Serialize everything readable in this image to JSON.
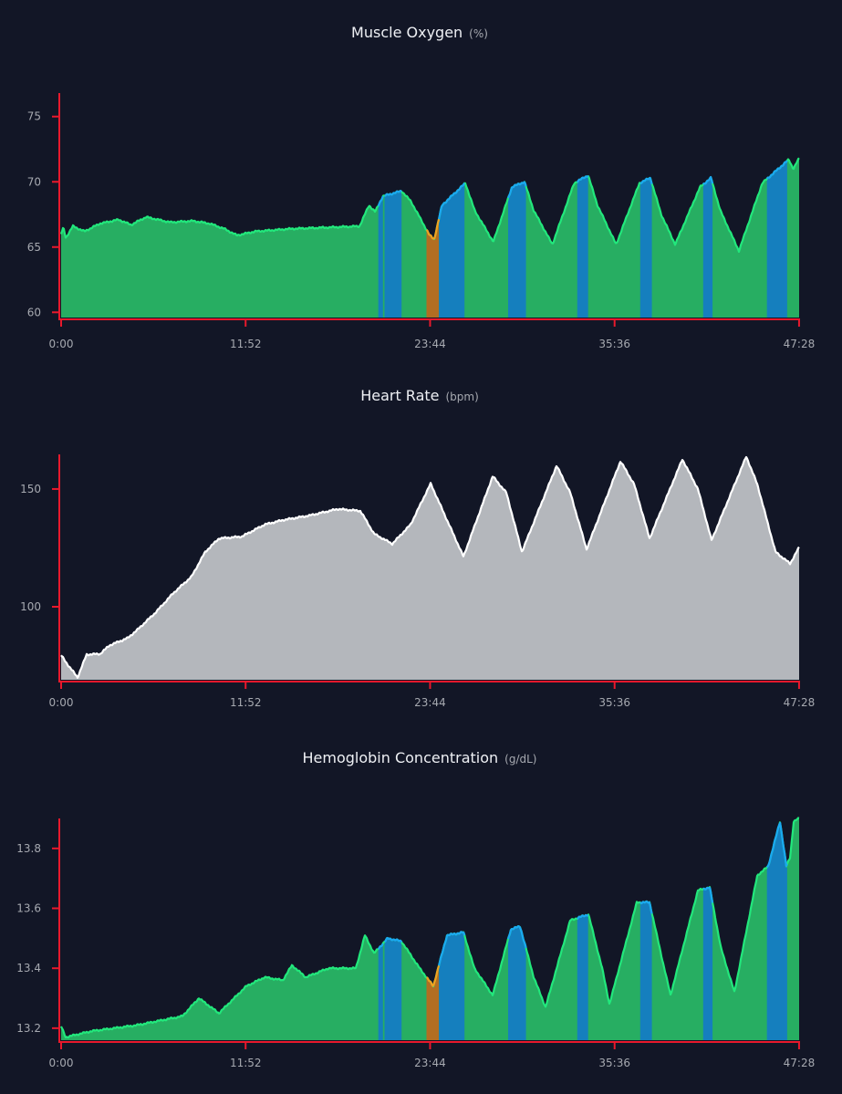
{
  "colors": {
    "background": "#121626",
    "axis": "#e8192c",
    "green_fill": "#27ae62",
    "green_line": "#22e87c",
    "blue_fill": "#157fbe",
    "blue_line": "#1aa8f2",
    "orange_fill": "#b26e22",
    "orange_line": "#f2a01e",
    "gray_fill": "#b4b7bc",
    "gray_line": "#ffffff"
  },
  "chart_data": [
    {
      "type": "area",
      "title": "Muscle Oxygen",
      "unit": "(%)",
      "xlabel": "",
      "ylabel": "",
      "x_unit": "minutes",
      "xlim": [
        0,
        47.47
      ],
      "ylim": [
        59.6,
        76.8
      ],
      "x_ticks": [
        {
          "value": 0,
          "label": "0:00"
        },
        {
          "value": 11.867,
          "label": "11:52"
        },
        {
          "value": 23.733,
          "label": "23:44"
        },
        {
          "value": 35.6,
          "label": "35:36"
        },
        {
          "value": 47.467,
          "label": "47:28"
        }
      ],
      "y_ticks": [
        {
          "value": 60,
          "label": "60"
        },
        {
          "value": 65,
          "label": "65"
        },
        {
          "value": 70,
          "label": "70"
        },
        {
          "value": 75,
          "label": "75"
        }
      ],
      "zones": [
        {
          "from": 20.4,
          "to": 20.7,
          "color": "blue"
        },
        {
          "from": 20.8,
          "to": 21.9,
          "color": "blue"
        },
        {
          "from": 23.5,
          "to": 24.3,
          "color": "orange"
        },
        {
          "from": 24.3,
          "to": 25.95,
          "color": "blue"
        },
        {
          "from": 28.75,
          "to": 29.9,
          "color": "blue"
        },
        {
          "from": 33.2,
          "to": 33.9,
          "color": "blue"
        },
        {
          "from": 37.25,
          "to": 38.0,
          "color": "blue"
        },
        {
          "from": 41.3,
          "to": 41.9,
          "color": "blue"
        },
        {
          "from": 45.4,
          "to": 46.7,
          "color": "blue"
        }
      ],
      "series_color": "green",
      "points": [
        [
          0,
          66.0
        ],
        [
          0.15,
          66.5
        ],
        [
          0.3,
          65.7
        ],
        [
          0.76,
          66.6
        ],
        [
          1.5,
          66.2
        ],
        [
          2.5,
          66.8
        ],
        [
          3.7,
          67.1
        ],
        [
          4.5,
          66.7
        ],
        [
          5.46,
          67.3
        ],
        [
          7,
          66.9
        ],
        [
          8.5,
          67.0
        ],
        [
          9.56,
          66.8
        ],
        [
          10.5,
          66.4
        ],
        [
          11.3,
          65.9
        ],
        [
          12.5,
          66.2
        ],
        [
          14.8,
          66.4
        ],
        [
          17,
          66.5
        ],
        [
          19.2,
          66.6
        ],
        [
          19.8,
          68.2
        ],
        [
          20.2,
          67.7
        ],
        [
          20.7,
          68.9
        ],
        [
          21.9,
          69.3
        ],
        [
          22.5,
          68.5
        ],
        [
          23.7,
          65.9
        ],
        [
          24.0,
          65.6
        ],
        [
          24.5,
          68.2
        ],
        [
          26.0,
          69.9
        ],
        [
          26.6,
          67.8
        ],
        [
          27.8,
          65.4
        ],
        [
          29.0,
          69.6
        ],
        [
          29.8,
          70.0
        ],
        [
          30.4,
          67.8
        ],
        [
          31.6,
          65.2
        ],
        [
          33.0,
          69.9
        ],
        [
          33.9,
          70.5
        ],
        [
          34.5,
          68.2
        ],
        [
          35.7,
          65.2
        ],
        [
          37.2,
          69.9
        ],
        [
          37.9,
          70.3
        ],
        [
          38.6,
          67.5
        ],
        [
          39.5,
          65.2
        ],
        [
          41.1,
          69.6
        ],
        [
          41.8,
          70.3
        ],
        [
          42.4,
          67.8
        ],
        [
          43.6,
          64.7
        ],
        [
          45.1,
          69.9
        ],
        [
          46.8,
          71.7
        ],
        [
          47.1,
          71.0
        ],
        [
          47.47,
          71.8
        ]
      ]
    },
    {
      "type": "area",
      "title": "Heart Rate",
      "unit": "(bpm)",
      "xlabel": "",
      "ylabel": "",
      "x_unit": "minutes",
      "xlim": [
        0,
        47.47
      ],
      "ylim": [
        69,
        164.7
      ],
      "x_ticks": [
        {
          "value": 0,
          "label": "0:00"
        },
        {
          "value": 11.867,
          "label": "11:52"
        },
        {
          "value": 23.733,
          "label": "23:44"
        },
        {
          "value": 35.6,
          "label": "35:36"
        },
        {
          "value": 47.467,
          "label": "47:28"
        }
      ],
      "y_ticks": [
        {
          "value": 100,
          "label": "100"
        },
        {
          "value": 150,
          "label": "150"
        }
      ],
      "zones": [],
      "series_color": "gray",
      "points": [
        [
          0,
          79.4
        ],
        [
          0.47,
          75
        ],
        [
          1.06,
          70
        ],
        [
          1.64,
          79.7
        ],
        [
          2.52,
          80
        ],
        [
          3.11,
          83.6
        ],
        [
          4.28,
          86.7
        ],
        [
          4.87,
          90
        ],
        [
          6.04,
          97.3
        ],
        [
          7.22,
          105.8
        ],
        [
          8.39,
          112.8
        ],
        [
          9.27,
          123.3
        ],
        [
          10.15,
          129
        ],
        [
          11.62,
          129.8
        ],
        [
          13.09,
          134.9
        ],
        [
          14.26,
          136.8
        ],
        [
          16.02,
          138.8
        ],
        [
          17.78,
          141.5
        ],
        [
          19.25,
          140.7
        ],
        [
          20.13,
          131
        ],
        [
          21.3,
          126.7
        ],
        [
          22.48,
          134.9
        ],
        [
          23.77,
          152.3
        ],
        [
          24.82,
          136.8
        ],
        [
          25.88,
          121.3
        ],
        [
          27.76,
          155.4
        ],
        [
          28.64,
          148.4
        ],
        [
          29.64,
          123.3
        ],
        [
          31.87,
          159.9
        ],
        [
          32.75,
          148.4
        ],
        [
          33.8,
          124.4
        ],
        [
          35.98,
          161.8
        ],
        [
          36.86,
          152
        ],
        [
          37.85,
          129
        ],
        [
          39.96,
          162.6
        ],
        [
          40.96,
          150
        ],
        [
          41.84,
          128.2
        ],
        [
          44.07,
          163.8
        ],
        [
          44.78,
          152
        ],
        [
          45.95,
          123.3
        ],
        [
          46.89,
          118.3
        ],
        [
          47.47,
          125.2
        ]
      ]
    },
    {
      "type": "area",
      "title": "Hemoglobin Concentration",
      "unit": "(g/dL)",
      "xlabel": "",
      "ylabel": "",
      "x_unit": "minutes",
      "xlim": [
        0,
        47.47
      ],
      "ylim": [
        13.16,
        13.9
      ],
      "x_ticks": [
        {
          "value": 0,
          "label": "0:00"
        },
        {
          "value": 11.867,
          "label": "11:52"
        },
        {
          "value": 23.733,
          "label": "23:44"
        },
        {
          "value": 35.6,
          "label": "35:36"
        },
        {
          "value": 47.467,
          "label": "47:28"
        }
      ],
      "y_ticks": [
        {
          "value": 13.2,
          "label": "13.2"
        },
        {
          "value": 13.4,
          "label": "13.4"
        },
        {
          "value": 13.6,
          "label": "13.6"
        },
        {
          "value": 13.8,
          "label": "13.8"
        }
      ],
      "zones": [
        {
          "from": 20.4,
          "to": 20.7,
          "color": "blue"
        },
        {
          "from": 20.8,
          "to": 21.9,
          "color": "blue"
        },
        {
          "from": 23.5,
          "to": 24.3,
          "color": "orange"
        },
        {
          "from": 24.3,
          "to": 25.95,
          "color": "blue"
        },
        {
          "from": 28.75,
          "to": 29.9,
          "color": "blue"
        },
        {
          "from": 33.2,
          "to": 33.9,
          "color": "blue"
        },
        {
          "from": 37.25,
          "to": 38.0,
          "color": "blue"
        },
        {
          "from": 41.3,
          "to": 41.9,
          "color": "blue"
        },
        {
          "from": 45.4,
          "to": 46.7,
          "color": "blue"
        }
      ],
      "series_color": "green",
      "points": [
        [
          0,
          13.206
        ],
        [
          0.29,
          13.17
        ],
        [
          1.94,
          13.19
        ],
        [
          4.87,
          13.21
        ],
        [
          7.8,
          13.24
        ],
        [
          8.86,
          13.3
        ],
        [
          10.15,
          13.25
        ],
        [
          11.91,
          13.34
        ],
        [
          13.09,
          13.37
        ],
        [
          14.26,
          13.36
        ],
        [
          14.85,
          13.41
        ],
        [
          15.73,
          13.37
        ],
        [
          17.2,
          13.4
        ],
        [
          18.96,
          13.4
        ],
        [
          19.54,
          13.51
        ],
        [
          20.13,
          13.45
        ],
        [
          21.01,
          13.5
        ],
        [
          21.89,
          13.49
        ],
        [
          23.06,
          13.4
        ],
        [
          23.94,
          13.34
        ],
        [
          24.82,
          13.51
        ],
        [
          25.88,
          13.52
        ],
        [
          26.58,
          13.4
        ],
        [
          27.76,
          13.31
        ],
        [
          28.93,
          13.53
        ],
        [
          29.52,
          13.54
        ],
        [
          30.4,
          13.37
        ],
        [
          31.16,
          13.27
        ],
        [
          32.75,
          13.56
        ],
        [
          33.92,
          13.58
        ],
        [
          34.8,
          13.4
        ],
        [
          35.27,
          13.28
        ],
        [
          37.03,
          13.62
        ],
        [
          37.85,
          13.62
        ],
        [
          38.62,
          13.44
        ],
        [
          39.2,
          13.31
        ],
        [
          40.96,
          13.66
        ],
        [
          41.72,
          13.67
        ],
        [
          42.43,
          13.47
        ],
        [
          43.31,
          13.32
        ],
        [
          44.78,
          13.71
        ],
        [
          45.48,
          13.74
        ],
        [
          46.24,
          13.89
        ],
        [
          46.65,
          13.74
        ],
        [
          46.89,
          13.77
        ],
        [
          47.12,
          13.89
        ],
        [
          47.47,
          13.9
        ]
      ]
    }
  ]
}
